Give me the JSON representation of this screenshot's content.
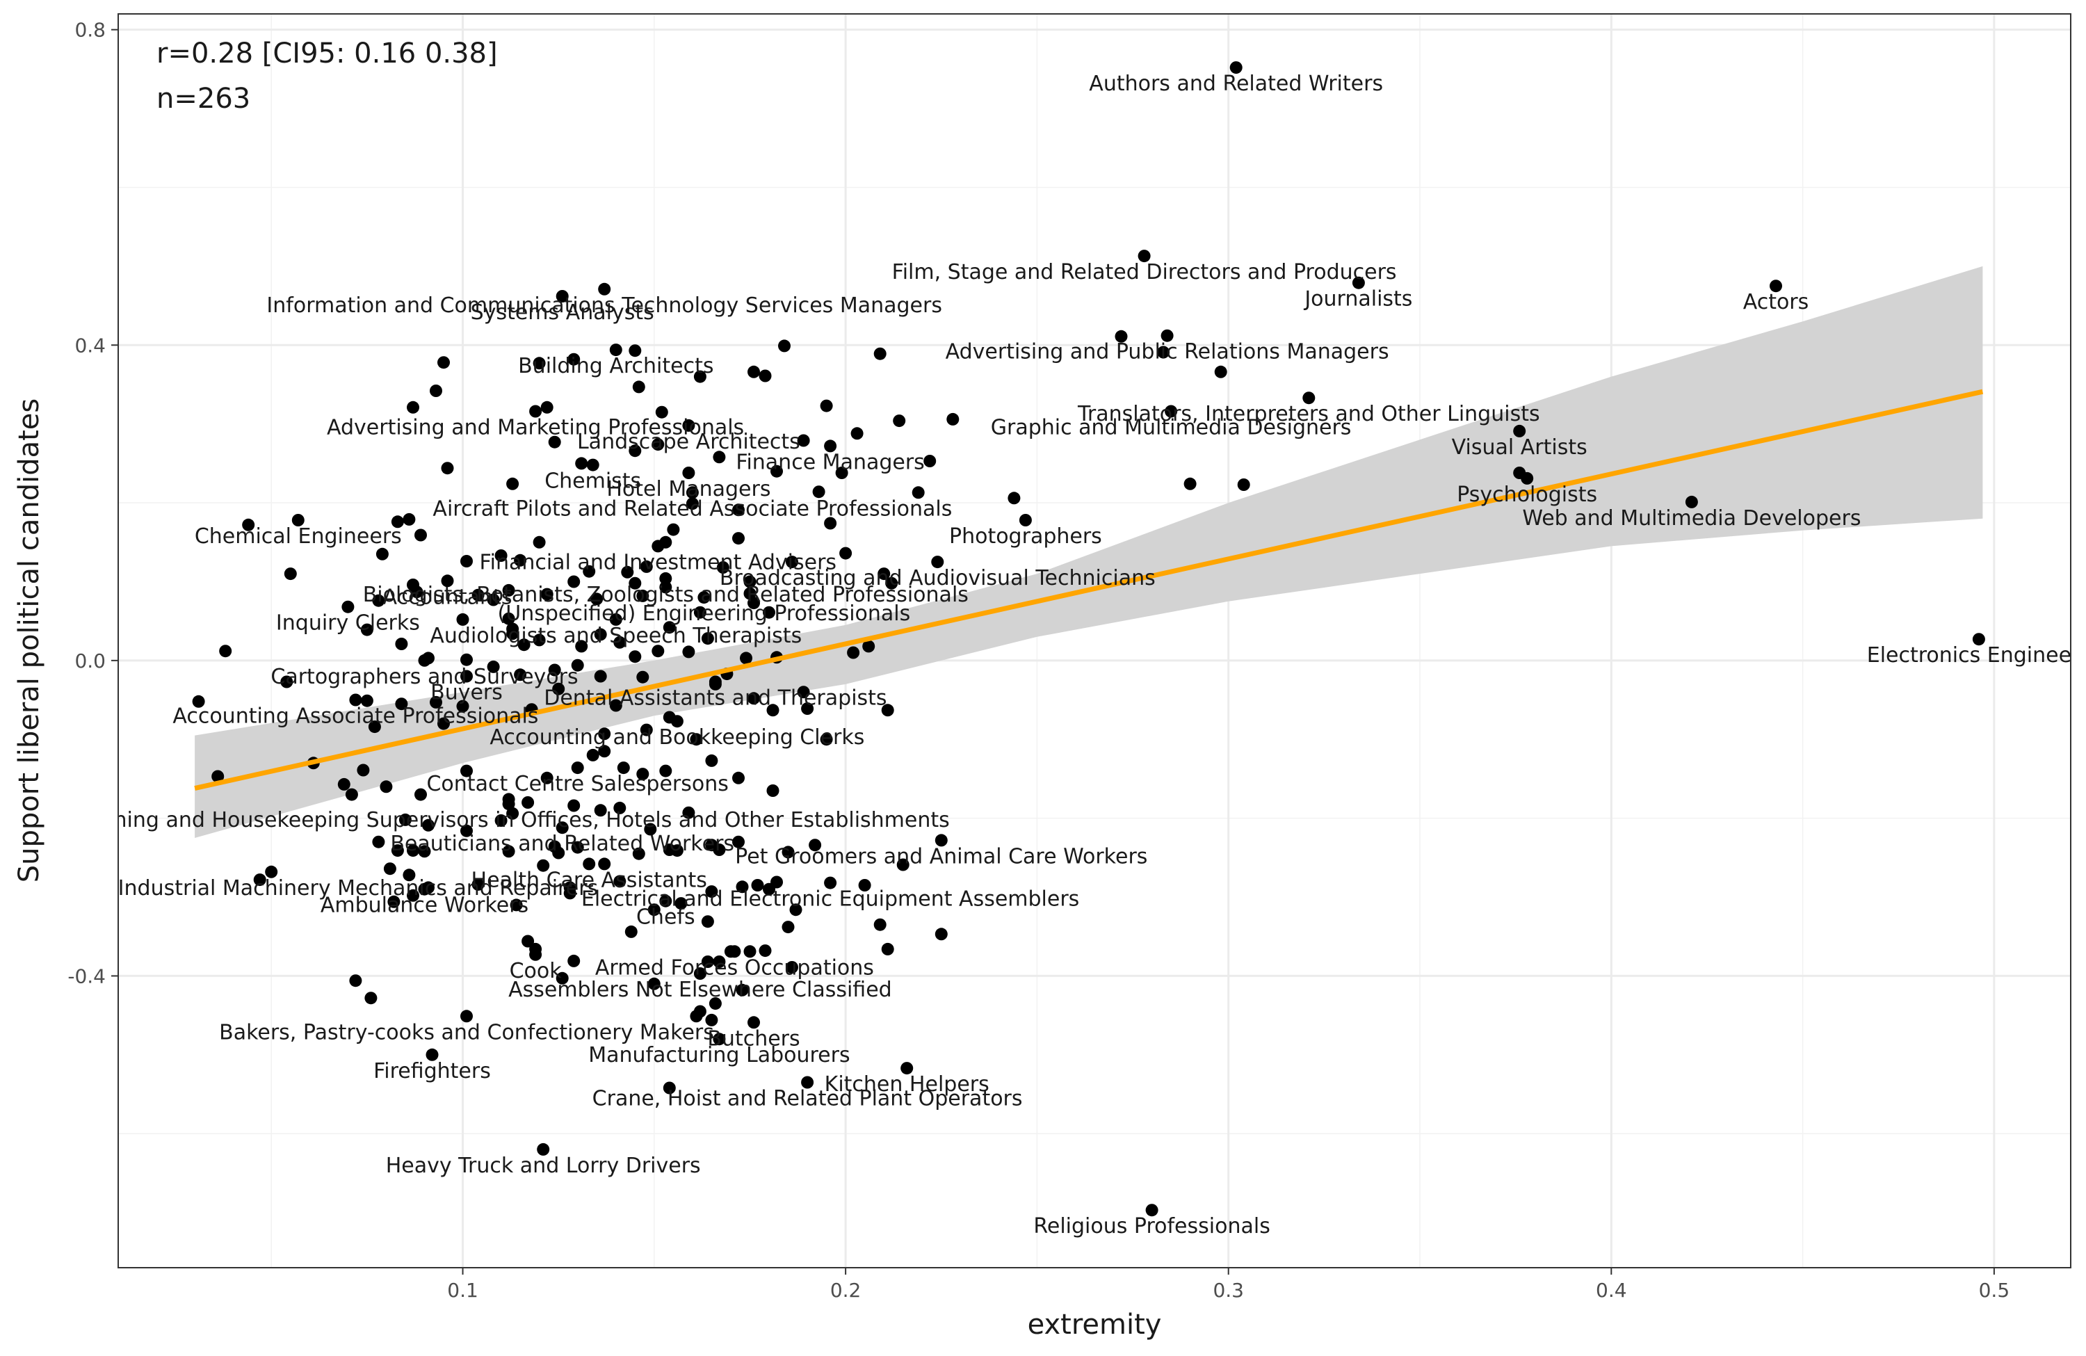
{
  "chart_data": {
    "type": "scatter",
    "xlabel": "extremity",
    "ylabel": "Support liberal political candidates",
    "xlim": [
      0.01,
      0.52
    ],
    "ylim": [
      -0.77,
      0.82
    ],
    "x_ticks": [
      0.1,
      0.2,
      0.3,
      0.4,
      0.5
    ],
    "y_ticks": [
      -0.4,
      0.0,
      0.4,
      0.8
    ],
    "x_tick_labels": [
      "0.1",
      "0.2",
      "0.3",
      "0.4",
      "0.5"
    ],
    "y_tick_labels": [
      "-0.4",
      "0.0",
      "0.4",
      "0.8"
    ],
    "minor_x_ticks": [
      0.05,
      0.15,
      0.25,
      0.35,
      0.45
    ],
    "minor_y_ticks": [
      -0.6,
      -0.2,
      0.2,
      0.6
    ],
    "grid": true,
    "stats": {
      "correlation": "r=0.28 [CI95: 0.16 0.38]",
      "n": "n=263"
    },
    "fit_line": {
      "color": "#FFA500",
      "x": [
        0.03,
        0.497
      ],
      "y": [
        -0.162,
        0.341
      ]
    },
    "confidence_band": {
      "color": "#D3D3D3",
      "x": [
        0.03,
        0.1,
        0.15,
        0.2,
        0.25,
        0.3,
        0.35,
        0.4,
        0.45,
        0.497
      ],
      "upper": [
        -0.095,
        -0.04,
        0.0,
        0.045,
        0.11,
        0.2,
        0.28,
        0.36,
        0.43,
        0.5
      ],
      "lower": [
        -0.225,
        -0.13,
        -0.07,
        -0.03,
        0.03,
        0.075,
        0.11,
        0.145,
        0.165,
        0.18
      ]
    },
    "labeled_points": [
      {
        "label": "Authors and Related Writers",
        "x": 0.302,
        "y": 0.752
      },
      {
        "label": "Film, Stage and Related Directors and Producers",
        "x": 0.278,
        "y": 0.513
      },
      {
        "label": "Information and Communications Technology Services Managers",
        "x": 0.137,
        "y": 0.471
      },
      {
        "label": "Journalists",
        "x": 0.334,
        "y": 0.479
      },
      {
        "label": "Actors",
        "x": 0.443,
        "y": 0.475
      },
      {
        "label": "Systems Analysts",
        "x": 0.126,
        "y": 0.462
      },
      {
        "label": "Advertising and Public Relations Managers",
        "x": 0.284,
        "y": 0.412
      },
      {
        "label": "Building Architects",
        "x": 0.14,
        "y": 0.394
      },
      {
        "label": "Translators, Interpreters and Other Linguists",
        "x": 0.321,
        "y": 0.333
      },
      {
        "label": "Advertising and Marketing Professionals",
        "x": 0.119,
        "y": 0.316
      },
      {
        "label": "Graphic and Multimedia Designers",
        "x": 0.285,
        "y": 0.316
      },
      {
        "label": "Landscape Architects",
        "x": 0.159,
        "y": 0.298
      },
      {
        "label": "Visual Artists",
        "x": 0.376,
        "y": 0.291
      },
      {
        "label": "Chemists",
        "x": 0.134,
        "y": 0.248
      },
      {
        "label": "Finance Managers",
        "x": 0.196,
        "y": 0.272
      },
      {
        "label": "Hotel Managers",
        "x": 0.159,
        "y": 0.238
      },
      {
        "label": "Aircraft Pilots and Related Associate Professionals",
        "x": 0.16,
        "y": 0.213
      },
      {
        "label": "Psychologists",
        "x": 0.378,
        "y": 0.231
      },
      {
        "label": "Photographers",
        "x": 0.247,
        "y": 0.178
      },
      {
        "label": "Web and Multimedia Developers",
        "x": 0.421,
        "y": 0.201
      },
      {
        "label": "Chemical Engineers",
        "x": 0.057,
        "y": 0.178
      },
      {
        "label": "Broadcasting and Audiovisual Technicians",
        "x": 0.224,
        "y": 0.125
      },
      {
        "label": "Financial and Investment Advisers",
        "x": 0.151,
        "y": 0.145
      },
      {
        "label": "Accountants",
        "x": 0.096,
        "y": 0.101
      },
      {
        "label": "Biologists, Botanists, Zoologists and Related Professionals",
        "x": 0.153,
        "y": 0.104
      },
      {
        "label": "(Unspecified) Engineering Professionals",
        "x": 0.163,
        "y": 0.08
      },
      {
        "label": "Inquiry Clerks",
        "x": 0.07,
        "y": 0.068
      },
      {
        "label": "Audiologists and Speech Therapists",
        "x": 0.14,
        "y": 0.052
      },
      {
        "label": "Electronics Engineers",
        "x": 0.496,
        "y": 0.027
      },
      {
        "label": "Cartographers and Surveyors",
        "x": 0.09,
        "y": 0.0
      },
      {
        "label": "Buyers",
        "x": 0.101,
        "y": -0.02
      },
      {
        "label": "Dental Assistants and Therapists",
        "x": 0.166,
        "y": -0.027
      },
      {
        "label": "Accounting Associate Professionals",
        "x": 0.072,
        "y": -0.05
      },
      {
        "label": "Accounting and Bookkeeping Clerks",
        "x": 0.156,
        "y": -0.077
      },
      {
        "label": "Contact Centre Salespersons",
        "x": 0.13,
        "y": -0.136
      },
      {
        "label": "Cleaning and Housekeeping Supervisors in Offices, Hotels and Other Establishments",
        "x": 0.112,
        "y": -0.182
      },
      {
        "label": "Beauticians and Related Workers",
        "x": 0.126,
        "y": -0.212
      },
      {
        "label": "Health Care Assistants",
        "x": 0.133,
        "y": -0.258
      },
      {
        "label": "Pet Groomers and Animal Care Workers",
        "x": 0.225,
        "y": -0.228
      },
      {
        "label": "Electrical and Electronic Equipment Assemblers",
        "x": 0.196,
        "y": -0.282
      },
      {
        "label": "Agricultural and Industrial Machinery Mechanics and Repairers",
        "x": 0.05,
        "y": -0.268
      },
      {
        "label": "Chefs",
        "x": 0.153,
        "y": -0.305
      },
      {
        "label": "Ambulance Workers",
        "x": 0.09,
        "y": -0.29
      },
      {
        "label": "Armed Forces Occupations",
        "x": 0.171,
        "y": -0.369
      },
      {
        "label": "Cook",
        "x": 0.119,
        "y": -0.373
      },
      {
        "label": "Assemblers Not Elsewhere Classified",
        "x": 0.162,
        "y": -0.397
      },
      {
        "label": "Bakers, Pastry-cooks and Confectionery Makers",
        "x": 0.101,
        "y": -0.451
      },
      {
        "label": "Butchers",
        "x": 0.176,
        "y": -0.459
      },
      {
        "label": "Firefighters",
        "x": 0.092,
        "y": -0.5
      },
      {
        "label": "Manufacturing Labourers",
        "x": 0.167,
        "y": -0.48
      },
      {
        "label": "Kitchen Helpers",
        "x": 0.216,
        "y": -0.517
      },
      {
        "label": "Crane, Hoist and Related Plant Operators",
        "x": 0.19,
        "y": -0.535
      },
      {
        "label": "Heavy Truck and Lorry Drivers",
        "x": 0.121,
        "y": -0.62
      },
      {
        "label": "Religious Professionals",
        "x": 0.28,
        "y": -0.697
      }
    ],
    "other_points": [
      [
        0.095,
        0.378
      ],
      [
        0.12,
        0.377
      ],
      [
        0.129,
        0.382
      ],
      [
        0.093,
        0.342
      ],
      [
        0.087,
        0.321
      ],
      [
        0.122,
        0.321
      ],
      [
        0.146,
        0.347
      ],
      [
        0.145,
        0.393
      ],
      [
        0.162,
        0.36
      ],
      [
        0.176,
        0.366
      ],
      [
        0.179,
        0.361
      ],
      [
        0.184,
        0.399
      ],
      [
        0.195,
        0.323
      ],
      [
        0.203,
        0.288
      ],
      [
        0.214,
        0.304
      ],
      [
        0.228,
        0.306
      ],
      [
        0.222,
        0.253
      ],
      [
        0.209,
        0.389
      ],
      [
        0.272,
        0.411
      ],
      [
        0.283,
        0.391
      ],
      [
        0.298,
        0.366
      ],
      [
        0.29,
        0.224
      ],
      [
        0.304,
        0.223
      ],
      [
        0.244,
        0.206
      ],
      [
        0.219,
        0.213
      ],
      [
        0.199,
        0.238
      ],
      [
        0.193,
        0.214
      ],
      [
        0.182,
        0.24
      ],
      [
        0.189,
        0.279
      ],
      [
        0.167,
        0.258
      ],
      [
        0.151,
        0.274
      ],
      [
        0.152,
        0.315
      ],
      [
        0.145,
        0.266
      ],
      [
        0.131,
        0.25
      ],
      [
        0.124,
        0.277
      ],
      [
        0.113,
        0.224
      ],
      [
        0.096,
        0.244
      ],
      [
        0.083,
        0.176
      ],
      [
        0.086,
        0.179
      ],
      [
        0.089,
        0.159
      ],
      [
        0.101,
        0.126
      ],
      [
        0.11,
        0.133
      ],
      [
        0.12,
        0.15
      ],
      [
        0.115,
        0.127
      ],
      [
        0.133,
        0.113
      ],
      [
        0.143,
        0.112
      ],
      [
        0.148,
        0.119
      ],
      [
        0.153,
        0.15
      ],
      [
        0.155,
        0.166
      ],
      [
        0.16,
        0.199
      ],
      [
        0.172,
        0.191
      ],
      [
        0.172,
        0.155
      ],
      [
        0.175,
        0.1
      ],
      [
        0.168,
        0.118
      ],
      [
        0.186,
        0.125
      ],
      [
        0.196,
        0.174
      ],
      [
        0.2,
        0.136
      ],
      [
        0.21,
        0.11
      ],
      [
        0.212,
        0.098
      ],
      [
        0.176,
        0.073
      ],
      [
        0.18,
        0.061
      ],
      [
        0.175,
        0.085
      ],
      [
        0.162,
        0.061
      ],
      [
        0.154,
        0.042
      ],
      [
        0.153,
        0.093
      ],
      [
        0.147,
        0.082
      ],
      [
        0.145,
        0.098
      ],
      [
        0.135,
        0.078
      ],
      [
        0.129,
        0.1
      ],
      [
        0.122,
        0.084
      ],
      [
        0.112,
        0.089
      ],
      [
        0.108,
        0.077
      ],
      [
        0.104,
        0.083
      ],
      [
        0.1,
        0.052
      ],
      [
        0.088,
        0.087
      ],
      [
        0.087,
        0.096
      ],
      [
        0.078,
        0.076
      ],
      [
        0.075,
        0.039
      ],
      [
        0.079,
        0.135
      ],
      [
        0.044,
        0.172
      ],
      [
        0.055,
        0.11
      ],
      [
        0.038,
        0.012
      ],
      [
        0.054,
        -0.027
      ],
      [
        0.031,
        -0.052
      ],
      [
        0.084,
        0.021
      ],
      [
        0.091,
        0.003
      ],
      [
        0.101,
        0.001
      ],
      [
        0.108,
        -0.008
      ],
      [
        0.112,
        0.053
      ],
      [
        0.113,
        0.04
      ],
      [
        0.116,
        0.02
      ],
      [
        0.113,
        0.034
      ],
      [
        0.12,
        0.026
      ],
      [
        0.131,
        0.018
      ],
      [
        0.136,
        0.033
      ],
      [
        0.141,
        0.023
      ],
      [
        0.145,
        0.005
      ],
      [
        0.151,
        0.012
      ],
      [
        0.159,
        0.011
      ],
      [
        0.164,
        0.028
      ],
      [
        0.174,
        0.003
      ],
      [
        0.182,
        0.004
      ],
      [
        0.202,
        0.01
      ],
      [
        0.206,
        0.018
      ],
      [
        0.115,
        -0.018
      ],
      [
        0.124,
        -0.012
      ],
      [
        0.13,
        -0.006
      ],
      [
        0.136,
        -0.02
      ],
      [
        0.147,
        -0.021
      ],
      [
        0.166,
        -0.03
      ],
      [
        0.169,
        -0.017
      ],
      [
        0.176,
        -0.048
      ],
      [
        0.181,
        -0.063
      ],
      [
        0.189,
        -0.04
      ],
      [
        0.19,
        -0.061
      ],
      [
        0.195,
        -0.1
      ],
      [
        0.211,
        -0.063
      ],
      [
        0.075,
        -0.051
      ],
      [
        0.077,
        -0.084
      ],
      [
        0.084,
        -0.055
      ],
      [
        0.093,
        -0.053
      ],
      [
        0.095,
        -0.08
      ],
      [
        0.1,
        -0.058
      ],
      [
        0.118,
        -0.062
      ],
      [
        0.125,
        -0.036
      ],
      [
        0.14,
        -0.057
      ],
      [
        0.137,
        -0.093
      ],
      [
        0.148,
        -0.088
      ],
      [
        0.154,
        -0.072
      ],
      [
        0.161,
        -0.1
      ],
      [
        0.165,
        -0.127
      ],
      [
        0.134,
        -0.12
      ],
      [
        0.137,
        -0.115
      ],
      [
        0.142,
        -0.136
      ],
      [
        0.147,
        -0.144
      ],
      [
        0.153,
        -0.14
      ],
      [
        0.172,
        -0.149
      ],
      [
        0.181,
        -0.165
      ],
      [
        0.101,
        -0.14
      ],
      [
        0.112,
        -0.176
      ],
      [
        0.113,
        -0.194
      ],
      [
        0.117,
        -0.18
      ],
      [
        0.122,
        -0.149
      ],
      [
        0.129,
        -0.184
      ],
      [
        0.136,
        -0.19
      ],
      [
        0.141,
        -0.187
      ],
      [
        0.149,
        -0.214
      ],
      [
        0.159,
        -0.193
      ],
      [
        0.069,
        -0.157
      ],
      [
        0.061,
        -0.13
      ],
      [
        0.071,
        -0.17
      ],
      [
        0.074,
        -0.139
      ],
      [
        0.08,
        -0.16
      ],
      [
        0.036,
        -0.147
      ],
      [
        0.085,
        -0.202
      ],
      [
        0.089,
        -0.17
      ],
      [
        0.091,
        -0.209
      ],
      [
        0.101,
        -0.216
      ],
      [
        0.11,
        -0.203
      ],
      [
        0.112,
        -0.242
      ],
      [
        0.124,
        -0.236
      ],
      [
        0.125,
        -0.244
      ],
      [
        0.13,
        -0.237
      ],
      [
        0.137,
        -0.258
      ],
      [
        0.146,
        -0.245
      ],
      [
        0.154,
        -0.24
      ],
      [
        0.156,
        -0.241
      ],
      [
        0.165,
        -0.234
      ],
      [
        0.167,
        -0.24
      ],
      [
        0.172,
        -0.23
      ],
      [
        0.185,
        -0.243
      ],
      [
        0.192,
        -0.234
      ],
      [
        0.215,
        -0.259
      ],
      [
        0.078,
        -0.23
      ],
      [
        0.083,
        -0.241
      ],
      [
        0.081,
        -0.264
      ],
      [
        0.087,
        -0.241
      ],
      [
        0.09,
        -0.242
      ],
      [
        0.086,
        -0.272
      ],
      [
        0.082,
        -0.306
      ],
      [
        0.087,
        -0.298
      ],
      [
        0.091,
        -0.288
      ],
      [
        0.104,
        -0.284
      ],
      [
        0.114,
        -0.31
      ],
      [
        0.121,
        -0.26
      ],
      [
        0.128,
        -0.288
      ],
      [
        0.128,
        -0.295
      ],
      [
        0.141,
        -0.28
      ],
      [
        0.15,
        -0.316
      ],
      [
        0.157,
        -0.308
      ],
      [
        0.165,
        -0.293
      ],
      [
        0.173,
        -0.287
      ],
      [
        0.177,
        -0.285
      ],
      [
        0.18,
        -0.29
      ],
      [
        0.182,
        -0.281
      ],
      [
        0.185,
        -0.338
      ],
      [
        0.187,
        -0.316
      ],
      [
        0.205,
        -0.285
      ],
      [
        0.209,
        -0.335
      ],
      [
        0.211,
        -0.366
      ],
      [
        0.225,
        -0.347
      ],
      [
        0.164,
        -0.331
      ],
      [
        0.17,
        -0.369
      ],
      [
        0.175,
        -0.369
      ],
      [
        0.179,
        -0.368
      ],
      [
        0.186,
        -0.389
      ],
      [
        0.164,
        -0.382
      ],
      [
        0.167,
        -0.382
      ],
      [
        0.173,
        -0.418
      ],
      [
        0.166,
        -0.435
      ],
      [
        0.165,
        -0.456
      ],
      [
        0.162,
        -0.445
      ],
      [
        0.161,
        -0.451
      ],
      [
        0.15,
        -0.41
      ],
      [
        0.144,
        -0.344
      ],
      [
        0.129,
        -0.381
      ],
      [
        0.126,
        -0.403
      ],
      [
        0.117,
        -0.356
      ],
      [
        0.119,
        -0.366
      ],
      [
        0.076,
        -0.428
      ],
      [
        0.072,
        -0.406
      ],
      [
        0.047,
        -0.278
      ],
      [
        0.154,
        -0.542
      ],
      [
        0.376,
        0.238
      ]
    ]
  }
}
